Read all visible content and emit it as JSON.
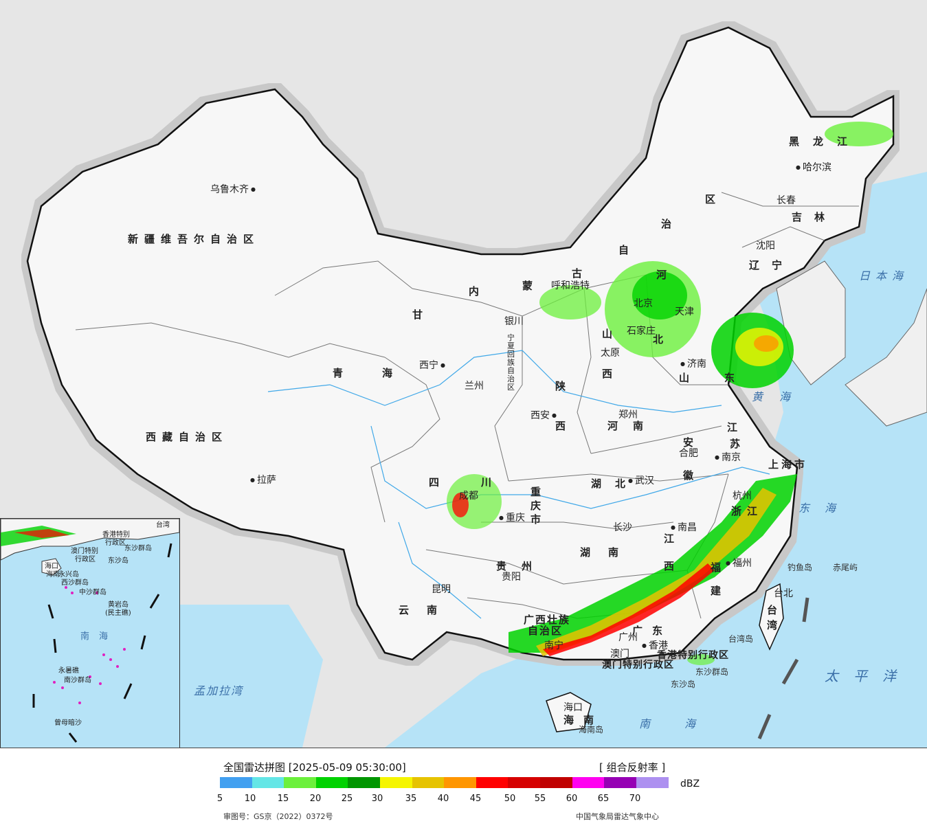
{
  "map": {
    "provinces": [
      {
        "id": "xinjiang",
        "text": "新疆维吾尔自治区"
      },
      {
        "id": "xizang",
        "text": "西藏自治区"
      },
      {
        "id": "qinghai1",
        "text": "青"
      },
      {
        "id": "qinghai2",
        "text": "海"
      },
      {
        "id": "gansu",
        "text": "甘"
      },
      {
        "id": "neimeng1",
        "text": "内"
      },
      {
        "id": "neimeng2",
        "text": "蒙"
      },
      {
        "id": "neimeng3",
        "text": "古"
      },
      {
        "id": "neimeng4",
        "text": "自"
      },
      {
        "id": "neimeng5",
        "text": "治"
      },
      {
        "id": "neimeng6",
        "text": "区"
      },
      {
        "id": "heilongjiang",
        "text": "黑龙江"
      },
      {
        "id": "jilin",
        "text": "吉林"
      },
      {
        "id": "liaoning",
        "text": "辽宁"
      },
      {
        "id": "hebei1",
        "text": "河"
      },
      {
        "id": "hebei2",
        "text": "北"
      },
      {
        "id": "shanxi1",
        "text": "山"
      },
      {
        "id": "shanxi2",
        "text": "西"
      },
      {
        "id": "shandong1",
        "text": "山"
      },
      {
        "id": "shandong2",
        "text": "东"
      },
      {
        "id": "shaanxi1",
        "text": "陕"
      },
      {
        "id": "shaanxi2",
        "text": "西"
      },
      {
        "id": "ningxia",
        "text": "宁夏回族自治区"
      },
      {
        "id": "henan",
        "text": "河南"
      },
      {
        "id": "jiangsu1",
        "text": "江"
      },
      {
        "id": "jiangsu2",
        "text": "苏"
      },
      {
        "id": "anhui1",
        "text": "安"
      },
      {
        "id": "anhui2",
        "text": "徽"
      },
      {
        "id": "hubei",
        "text": "湖北"
      },
      {
        "id": "sichuan1",
        "text": "四"
      },
      {
        "id": "sichuan2",
        "text": "川"
      },
      {
        "id": "chongqing",
        "text": "重庆市"
      },
      {
        "id": "zhejiang",
        "text": "浙江"
      },
      {
        "id": "shanghai",
        "text": "上海市"
      },
      {
        "id": "jiangxi1",
        "text": "江"
      },
      {
        "id": "jiangxi2",
        "text": "西"
      },
      {
        "id": "hunan",
        "text": "湖南"
      },
      {
        "id": "guizhou",
        "text": "贵州"
      },
      {
        "id": "yunnan",
        "text": "云南"
      },
      {
        "id": "fujian1",
        "text": "福"
      },
      {
        "id": "fujian2",
        "text": "建"
      },
      {
        "id": "guangxi1",
        "text": "广西壮族"
      },
      {
        "id": "guangxi2",
        "text": "自治区"
      },
      {
        "id": "guangdong",
        "text": "广东"
      },
      {
        "id": "hainan",
        "text": "海南"
      },
      {
        "id": "taiwan1",
        "text": "台"
      },
      {
        "id": "taiwan2",
        "text": "湾"
      },
      {
        "id": "beijing",
        "text": "北京"
      },
      {
        "id": "tianjin",
        "text": "天津"
      },
      {
        "id": "xianggang",
        "text": "香港特别行政区"
      },
      {
        "id": "aomen",
        "text": "澳门特别行政区"
      }
    ],
    "cities": [
      {
        "id": "urumqi",
        "text": "乌鲁木齐"
      },
      {
        "id": "lhasa",
        "text": "拉萨"
      },
      {
        "id": "xining",
        "text": "西宁"
      },
      {
        "id": "lanzhou",
        "text": "兰州"
      },
      {
        "id": "yinchuan",
        "text": "银川"
      },
      {
        "id": "huhehaote",
        "text": "呼和浩特"
      },
      {
        "id": "taiyuan",
        "text": "太原"
      },
      {
        "id": "shijiazhuang",
        "text": "石家庄"
      },
      {
        "id": "jinan",
        "text": "济南"
      },
      {
        "id": "zhengzhou",
        "text": "郑州"
      },
      {
        "id": "xian",
        "text": "西安"
      },
      {
        "id": "hefei",
        "text": "合肥"
      },
      {
        "id": "nanjing",
        "text": "南京"
      },
      {
        "id": "hangzhou",
        "text": "杭州"
      },
      {
        "id": "wuhan",
        "text": "武汉"
      },
      {
        "id": "chengdu",
        "text": "成都"
      },
      {
        "id": "chongqingcity",
        "text": "重庆"
      },
      {
        "id": "changsha",
        "text": "长沙"
      },
      {
        "id": "nanchang",
        "text": "南昌"
      },
      {
        "id": "guiyang",
        "text": "贵阳"
      },
      {
        "id": "kunming",
        "text": "昆明"
      },
      {
        "id": "fuzhou",
        "text": "福州"
      },
      {
        "id": "guangzhou",
        "text": "广州"
      },
      {
        "id": "nanning",
        "text": "南宁"
      },
      {
        "id": "haikou",
        "text": "海口"
      },
      {
        "id": "taibei",
        "text": "台北"
      },
      {
        "id": "shenyang",
        "text": "沈阳"
      },
      {
        "id": "changchun",
        "text": "长春"
      },
      {
        "id": "haerbin",
        "text": "哈尔滨"
      },
      {
        "id": "hongkong",
        "text": "香港"
      },
      {
        "id": "macau",
        "text": "澳门"
      }
    ],
    "seas": [
      {
        "id": "japan-sea",
        "text": "日本海"
      },
      {
        "id": "yellow-sea",
        "text": "黄海"
      },
      {
        "id": "east-sea",
        "text": "东海"
      },
      {
        "id": "pacific",
        "text": "太平洋"
      },
      {
        "id": "south-sea",
        "text": "南海"
      },
      {
        "id": "bengal",
        "text": "孟加拉湾"
      }
    ],
    "islands": [
      {
        "id": "diaoyu",
        "text": "钓鱼岛"
      },
      {
        "id": "chiwei",
        "text": "赤尾屿"
      },
      {
        "id": "taiwan-isl",
        "text": "台湾岛"
      },
      {
        "id": "dongsha-qd",
        "text": "东沙群岛"
      },
      {
        "id": "dongsha",
        "text": "东沙岛"
      },
      {
        "id": "hainan-isl",
        "text": "海南岛"
      }
    ],
    "inset": {
      "labels": [
        {
          "id": "i-taiwan",
          "text": "台湾"
        },
        {
          "id": "i-xianggang",
          "text": "香港特别"
        },
        {
          "id": "i-xianggang2",
          "text": "行政区"
        },
        {
          "id": "i-aomen",
          "text": "澳门特别"
        },
        {
          "id": "i-aomen2",
          "text": "行政区"
        },
        {
          "id": "i-dongsha",
          "text": "东沙群岛"
        },
        {
          "id": "i-dongshadao",
          "text": "东沙岛"
        },
        {
          "id": "i-haikou",
          "text": "海口"
        },
        {
          "id": "i-hainan",
          "text": "海南"
        },
        {
          "id": "i-xisha",
          "text": "西沙群岛"
        },
        {
          "id": "i-yongxing",
          "text": "永兴岛"
        },
        {
          "id": "i-zhongsha",
          "text": "中沙群岛"
        },
        {
          "id": "i-huangyan",
          "text": "黄岩岛"
        },
        {
          "id": "i-minzhu",
          "text": "(民主礁)"
        },
        {
          "id": "i-nanhai",
          "text": "南海"
        },
        {
          "id": "i-yongshu",
          "text": "永暑礁"
        },
        {
          "id": "i-nansha",
          "text": "南沙群岛"
        },
        {
          "id": "i-zengmu",
          "text": "曾母暗沙"
        }
      ]
    }
  },
  "legend": {
    "title": "全国雷达拼图 [2025-05-09 05:30:00]",
    "product": "[ 组合反射率 ]",
    "unit": "dBZ",
    "ticks": [
      "5",
      "10",
      "15",
      "20",
      "25",
      "30",
      "35",
      "40",
      "45",
      "50",
      "55",
      "60",
      "65",
      "70"
    ],
    "colors": [
      "#42a0f0",
      "#64e6e6",
      "#6cf03c",
      "#00d200",
      "#009600",
      "#f5f500",
      "#e6c300",
      "#ff9600",
      "#ff0000",
      "#d60000",
      "#c00000",
      "#ff00f0",
      "#9600b4",
      "#ad90f0"
    ],
    "approval": "审图号：GS京（2022）0372号",
    "org": "中国气象局雷达气象中心"
  }
}
